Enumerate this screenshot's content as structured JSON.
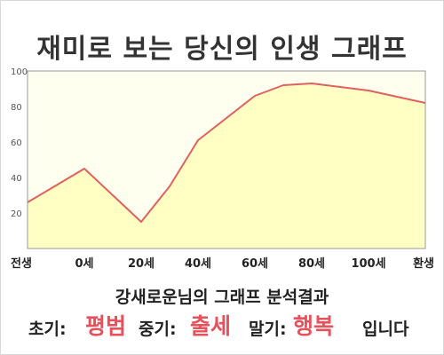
{
  "title": "재미로 보는 당신의 인생 그래프",
  "chart_data": {
    "type": "area",
    "categories": [
      "전생",
      "0세",
      "20세",
      "40세",
      "60세",
      "80세",
      "100세",
      "환생"
    ],
    "x_label_positions": [
      0,
      1,
      2,
      3,
      4,
      5,
      6,
      7
    ],
    "points": [
      {
        "x": 0,
        "y": 26
      },
      {
        "x": 1,
        "y": 45
      },
      {
        "x": 2,
        "y": 15
      },
      {
        "x": 2.5,
        "y": 35
      },
      {
        "x": 3,
        "y": 61
      },
      {
        "x": 4,
        "y": 86
      },
      {
        "x": 4.5,
        "y": 92
      },
      {
        "x": 5,
        "y": 93
      },
      {
        "x": 6,
        "y": 89
      },
      {
        "x": 7,
        "y": 82
      }
    ],
    "ylim": [
      0,
      100
    ],
    "yticks": [
      20,
      40,
      60,
      80,
      100
    ],
    "grid": false,
    "colors": {
      "line": "#e06060",
      "fill": "#ffffc4",
      "plot_bg": "#fffff0"
    }
  },
  "result": {
    "title": "강새로운님의 그래프 분석결과",
    "early_label": "초기:",
    "early_value": "평범",
    "mid_label": "중기:",
    "mid_value": "출세",
    "late_label": "말기:",
    "late_value": "행복",
    "suffix": "입니다"
  }
}
